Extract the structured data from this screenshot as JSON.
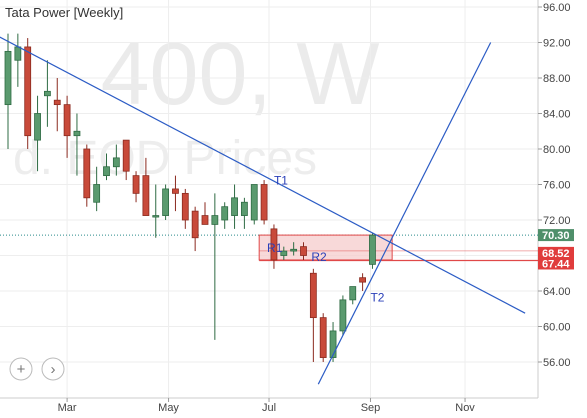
{
  "title": "Tata Power [Weekly]",
  "watermark": {
    "main": "400, W",
    "sub": "d. EOD Prices"
  },
  "colors": {
    "up_fill": "#5a9a6e",
    "up_line": "#2e6b43",
    "down_fill": "#c84a3a",
    "down_line": "#8b2a1f",
    "trendline": "#2c5cc5",
    "zone_fill": "#f6cccc",
    "zone_line": "#e04848",
    "current_badge": "#4f8f6a",
    "level_badge": "#e03c3c",
    "grid": "#eeeeee"
  },
  "nav_buttons": [
    {
      "name": "zoom-in-button",
      "symbol": "+"
    },
    {
      "name": "next-button",
      "symbol": "›"
    }
  ],
  "chart_data": {
    "type": "candlestick",
    "title": "Tata Power [Weekly]",
    "ylim": [
      53,
      97
    ],
    "y_ticks": [
      "96.00",
      "92.00",
      "88.00",
      "84.00",
      "80.00",
      "76.00",
      "72.00",
      "68.00",
      "64.00",
      "60.00",
      "56.00"
    ],
    "x_ticks": [
      "Mar",
      "May",
      "Jul",
      "Sep",
      "Nov"
    ],
    "grid": true,
    "price_badges": [
      {
        "label": "70.30",
        "value": 70.3,
        "color": "#4f8f6a"
      },
      {
        "label": "68.52",
        "value": 68.52,
        "color": "#e03c3c"
      },
      {
        "label": "67.44",
        "value": 67.44,
        "color": "#e03c3c"
      }
    ],
    "candles": [
      {
        "o": 85.0,
        "h": 93.0,
        "l": 80.0,
        "c": 91.0
      },
      {
        "o": 90.0,
        "h": 93.0,
        "l": 87.0,
        "c": 91.5
      },
      {
        "o": 91.5,
        "h": 92.5,
        "l": 80.0,
        "c": 81.5
      },
      {
        "o": 81.0,
        "h": 86.0,
        "l": 77.5,
        "c": 84.0
      },
      {
        "o": 86.0,
        "h": 90.0,
        "l": 82.5,
        "c": 86.5
      },
      {
        "o": 85.5,
        "h": 88.0,
        "l": 82.0,
        "c": 85.0
      },
      {
        "o": 85.0,
        "h": 86.0,
        "l": 79.0,
        "c": 81.5
      },
      {
        "o": 81.5,
        "h": 84.0,
        "l": 77.0,
        "c": 82.0
      },
      {
        "o": 80.0,
        "h": 80.5,
        "l": 73.5,
        "c": 74.5
      },
      {
        "o": 74.0,
        "h": 78.0,
        "l": 73.0,
        "c": 76.0
      },
      {
        "o": 77.0,
        "h": 79.5,
        "l": 76.5,
        "c": 78.0
      },
      {
        "o": 78.0,
        "h": 80.5,
        "l": 77.0,
        "c": 79.0
      },
      {
        "o": 81.0,
        "h": 81.0,
        "l": 76.5,
        "c": 77.5
      },
      {
        "o": 77.0,
        "h": 77.5,
        "l": 74.0,
        "c": 75.0
      },
      {
        "o": 77.0,
        "h": 79.0,
        "l": 72.5,
        "c": 72.5
      },
      {
        "o": 72.5,
        "h": 76.0,
        "l": 70.0,
        "c": 72.5
      },
      {
        "o": 72.5,
        "h": 76.0,
        "l": 72.0,
        "c": 75.5
      },
      {
        "o": 75.5,
        "h": 77.0,
        "l": 73.0,
        "c": 75.0
      },
      {
        "o": 75.0,
        "h": 75.5,
        "l": 71.0,
        "c": 72.0
      },
      {
        "o": 73.0,
        "h": 73.5,
        "l": 68.5,
        "c": 70.0
      },
      {
        "o": 72.5,
        "h": 74.0,
        "l": 71.5,
        "c": 71.5
      },
      {
        "o": 71.5,
        "h": 75.0,
        "l": 58.5,
        "c": 72.5
      },
      {
        "o": 72.0,
        "h": 74.0,
        "l": 71.0,
        "c": 73.5
      },
      {
        "o": 72.5,
        "h": 76.0,
        "l": 71.0,
        "c": 74.5
      },
      {
        "o": 72.5,
        "h": 74.5,
        "l": 71.0,
        "c": 74.0
      },
      {
        "o": 72.0,
        "h": 76.0,
        "l": 71.5,
        "c": 76.0
      },
      {
        "o": 76.0,
        "h": 76.5,
        "l": 71.5,
        "c": 72.0
      },
      {
        "o": 71.0,
        "h": 71.5,
        "l": 66.5,
        "c": 67.5
      },
      {
        "o": 68.0,
        "h": 69.0,
        "l": 67.5,
        "c": 68.5
      },
      {
        "o": 68.5,
        "h": 69.5,
        "l": 68.0,
        "c": 68.7
      },
      {
        "o": 69.0,
        "h": 69.5,
        "l": 67.5,
        "c": 68.0
      },
      {
        "o": 66.0,
        "h": 66.5,
        "l": 56.0,
        "c": 61.0
      },
      {
        "o": 61.0,
        "h": 61.5,
        "l": 56.0,
        "c": 56.5
      },
      {
        "o": 56.5,
        "h": 60.5,
        "l": 56.0,
        "c": 59.5
      },
      {
        "o": 59.5,
        "h": 63.5,
        "l": 59.0,
        "c": 63.0
      },
      {
        "o": 63.0,
        "h": 64.5,
        "l": 62.5,
        "c": 64.5
      },
      {
        "o": 65.5,
        "h": 66.0,
        "l": 64.0,
        "c": 65.0
      },
      {
        "o": 67.0,
        "h": 70.5,
        "l": 66.5,
        "c": 70.3
      }
    ],
    "trendlines": [
      {
        "label": "",
        "start": {
          "index": -1.5,
          "value": 93.0
        },
        "end": {
          "index": 52.5,
          "value": 61.5
        }
      },
      {
        "label": "",
        "start": {
          "index": 31.5,
          "value": 53.5
        },
        "end": {
          "index": 49.0,
          "value": 92.0
        }
      }
    ],
    "horizontal_levels": [
      {
        "value": 70.3,
        "style": "dotted"
      }
    ],
    "zone": {
      "from_index": 25.5,
      "to_index": 39.0,
      "top": 70.3,
      "bottom": 67.5
    },
    "zone_line": {
      "from_index": 25.5,
      "to_index": 43.0,
      "value": 67.44
    },
    "annotations": [
      {
        "label": "T1",
        "index": 27.0,
        "value": 76.0
      },
      {
        "label": "R1",
        "index": 26.3,
        "value": 68.4
      },
      {
        "label": "R2",
        "index": 30.8,
        "value": 67.4
      },
      {
        "label": "T2",
        "index": 36.8,
        "value": 62.8
      }
    ]
  }
}
